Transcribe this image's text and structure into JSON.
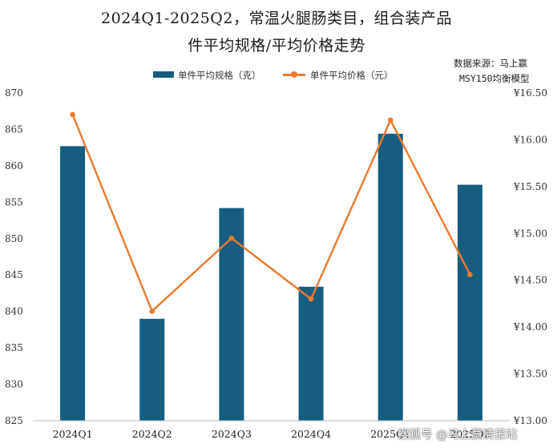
{
  "header": {
    "title_line1": "2024Q1-2025Q2，常温火腿肠类目，组合装产品",
    "title_line2": "件平均规格/平均价格走势",
    "source_line1": "数据来源：马上赢",
    "source_line2": "MSY150均衡模型"
  },
  "watermark": "搜狐号 @马上赢情报站",
  "chart_data": {
    "type": "bar",
    "categories": [
      "2024Q1",
      "2024Q2",
      "2024Q3",
      "2024Q4",
      "2025Q1",
      "2025Q2"
    ],
    "series": [
      {
        "name": "单件平均规格（克）",
        "type": "bar",
        "axis": "left",
        "color": "#155e80",
        "values": [
          862.7,
          839.0,
          854.2,
          843.4,
          864.4,
          857.4
        ]
      },
      {
        "name": "单件平均价格（元）",
        "type": "line",
        "axis": "right",
        "color": "#ec7a2f",
        "values": [
          16.27,
          14.17,
          14.95,
          14.3,
          16.21,
          14.56
        ]
      }
    ],
    "left_axis": {
      "ylim": [
        825,
        870
      ],
      "ticks": [
        "825",
        "830",
        "835",
        "840",
        "845",
        "850",
        "855",
        "860",
        "865",
        "870"
      ]
    },
    "right_axis": {
      "ylim": [
        13.0,
        16.5
      ],
      "ticks": [
        "¥13.00",
        "¥13.50",
        "¥14.00",
        "¥14.50",
        "¥15.00",
        "¥15.50",
        "¥16.00",
        "¥16.50"
      ]
    },
    "grid": false,
    "legend_position": "top"
  }
}
